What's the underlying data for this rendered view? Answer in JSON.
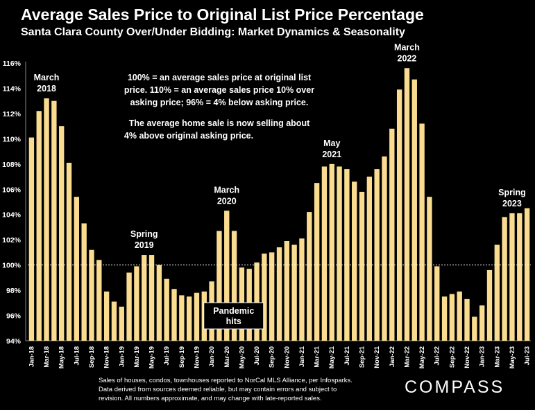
{
  "header": {
    "title": "Average Sales Price to Original List Price Percentage",
    "subtitle": "Santa Clara County Over/Under Bidding: Market Dynamics & Seasonality"
  },
  "info_box": {
    "line1": "100% = an average sales price at original list",
    "line2": "price. 110% = an average sales price 10% over",
    "line3": "asking price; 96% = 4% below asking price.",
    "line4": "The average home sale is now selling about",
    "line5": "4% above original asking price."
  },
  "footnote": {
    "line1": "Sales of houses, condos, townhouses reported to NorCal MLS Alliance, per Infosparks.",
    "line2": "Data derived from sources deemed reliable, but may contain errors and subject to",
    "line3": "revision. All numbers approximate, and may change with late-reported sales."
  },
  "logo": {
    "text": "COMPASS"
  },
  "colors": {
    "bar": "#f9dc8f",
    "background": "#000000",
    "text": "#ffffff"
  },
  "chart_data": {
    "type": "bar",
    "ylim": [
      94,
      116
    ],
    "yticks": [
      "94%",
      "96%",
      "98%",
      "100%",
      "102%",
      "104%",
      "106%",
      "108%",
      "110%",
      "112%",
      "114%",
      "116%"
    ],
    "reference_line": 100,
    "categories": [
      "Jan-18",
      "Feb-18",
      "Mar-18",
      "Apr-18",
      "May-18",
      "Jun-18",
      "Jul-18",
      "Aug-18",
      "Sep-18",
      "Oct-18",
      "Nov-18",
      "Dec-18",
      "Jan-19",
      "Feb-19",
      "Mar-19",
      "Apr-19",
      "May-19",
      "Jun-19",
      "Jul-19",
      "Aug-19",
      "Sep-19",
      "Oct-19",
      "Nov-19",
      "Dec-19",
      "Jan-20",
      "Feb-20",
      "Mar-20",
      "Apr-20",
      "May-20",
      "Jun-20",
      "Jul-20",
      "Aug-20",
      "Sep-20",
      "Oct-20",
      "Nov-20",
      "Dec-20",
      "Jan-21",
      "Feb-21",
      "Mar-21",
      "Apr-21",
      "May-21",
      "Jun-21",
      "Jul-21",
      "Aug-21",
      "Sep-21",
      "Oct-21",
      "Nov-21",
      "Dec-21",
      "Jan-22",
      "Feb-22",
      "Mar-22",
      "Apr-22",
      "May-22",
      "Jun-22",
      "Jul-22",
      "Aug-22",
      "Sep-22",
      "Oct-22",
      "Nov-22",
      "Dec-22",
      "Jan-23",
      "Feb-23",
      "Mar-23",
      "Apr-23",
      "May-23",
      "Jun-23",
      "Jul-23"
    ],
    "values": [
      110.1,
      112.2,
      113.2,
      113.0,
      111.0,
      108.1,
      105.4,
      103.3,
      101.2,
      100.4,
      97.9,
      97.1,
      96.7,
      99.4,
      99.9,
      100.8,
      100.8,
      100.0,
      98.9,
      98.1,
      97.6,
      97.5,
      97.8,
      97.9,
      98.7,
      102.7,
      104.3,
      102.7,
      99.8,
      99.7,
      100.2,
      100.9,
      101.0,
      101.4,
      101.9,
      101.6,
      102.1,
      104.2,
      106.5,
      107.8,
      108.0,
      107.8,
      107.6,
      106.6,
      105.8,
      107.0,
      107.6,
      108.6,
      110.8,
      113.9,
      115.6,
      114.7,
      111.2,
      105.4,
      99.9,
      97.5,
      97.7,
      97.9,
      97.3,
      95.9,
      96.8,
      99.6,
      101.6,
      103.8,
      104.1,
      104.1,
      104.5
    ],
    "xtick_labels": [
      "Jan-18",
      "Mar-18",
      "May-18",
      "Jul-18",
      "Sep-18",
      "Nov-18",
      "Jan-19",
      "Mar-19",
      "May-19",
      "Jul-19",
      "Sep-19",
      "Nov-19",
      "Jan-20",
      "Mar-20",
      "May-20",
      "Jul-20",
      "Sep-20",
      "Nov-20",
      "Jan-21",
      "Mar-21",
      "May-21",
      "Jul-21",
      "Sep-21",
      "Nov-21",
      "Jan-22",
      "Mar-22",
      "May-22",
      "Jul-22",
      "Sep-22",
      "Nov-22",
      "Jan-23",
      "Mar-23",
      "May-23",
      "Jul-23"
    ],
    "annotations": [
      {
        "lines": [
          "March",
          "2018"
        ],
        "index": 2
      },
      {
        "lines": [
          "Spring",
          "2019"
        ],
        "index": 15
      },
      {
        "lines": [
          "March",
          "2020"
        ],
        "index": 26
      },
      {
        "lines": [
          "May",
          "2021"
        ],
        "index": 40
      },
      {
        "lines": [
          "March",
          "2022"
        ],
        "index": 50
      },
      {
        "lines": [
          "Spring",
          "2023"
        ],
        "index": 64
      }
    ],
    "pandemic_label": [
      "Pandemic",
      "hits"
    ]
  }
}
